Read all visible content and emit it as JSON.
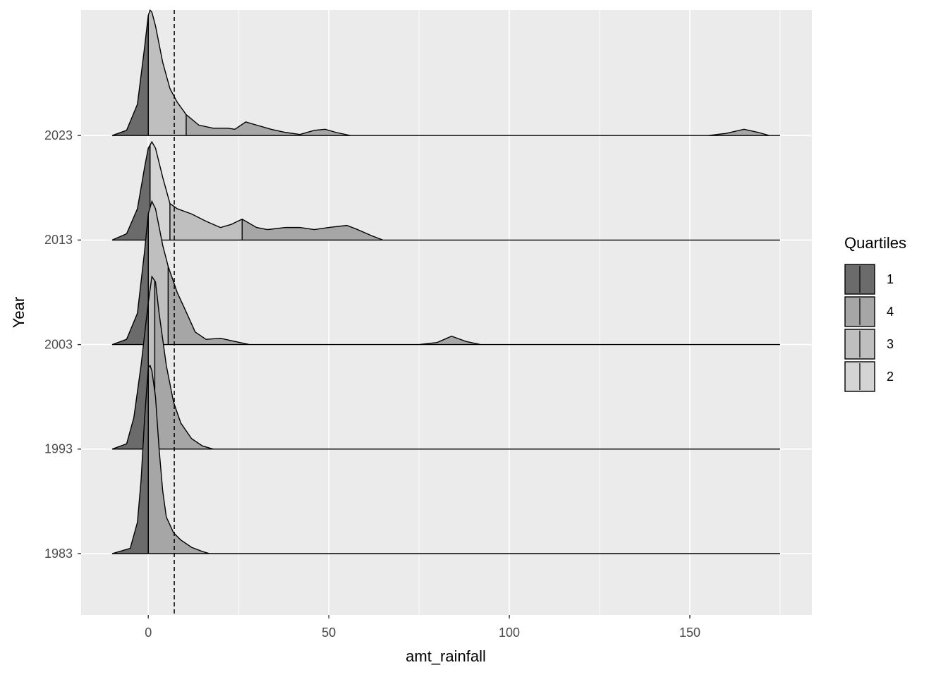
{
  "chart_data": {
    "type": "ridgeline",
    "xlabel": "amt_rainfall",
    "ylabel": "Year",
    "xlim": [
      -18.6,
      183.8
    ],
    "xticks": [
      0,
      50,
      100,
      150
    ],
    "xminor": [
      25,
      75,
      125,
      175
    ],
    "categories": [
      "1983",
      "1993",
      "2003",
      "2013",
      "2023"
    ],
    "vline": 7.2,
    "legend_title": "Quartiles",
    "legend": [
      {
        "label": "1",
        "color": "#6b6b6b"
      },
      {
        "label": "4",
        "color": "#a6a6a6"
      },
      {
        "label": "3",
        "color": "#bfbfbf"
      },
      {
        "label": "2",
        "color": "#d4d4d4"
      }
    ],
    "series": [
      {
        "x": [
          -10,
          -5,
          -3,
          -2,
          -1,
          0,
          0.5,
          1,
          2,
          3,
          4,
          5,
          7,
          9,
          12,
          15,
          17,
          175
        ],
        "values": [
          0,
          0.05,
          0.3,
          0.7,
          1.3,
          1.78,
          1.8,
          1.75,
          1.5,
          1.0,
          0.6,
          0.35,
          0.2,
          0.13,
          0.06,
          0.02,
          0,
          0
        ],
        "quartiles": [
          0,
          0,
          0
        ]
      },
      {
        "x": [
          -10,
          -6,
          -4,
          -2,
          0,
          1,
          2,
          3,
          5,
          7,
          9,
          12,
          15,
          18,
          175
        ],
        "values": [
          0,
          0.05,
          0.3,
          0.8,
          1.4,
          1.65,
          1.6,
          1.3,
          0.8,
          0.45,
          0.25,
          0.1,
          0.03,
          0,
          0
        ],
        "quartiles": [
          0,
          0,
          1.8
        ]
      },
      {
        "x": [
          -10,
          -6,
          -3,
          -1,
          0,
          1,
          2,
          4,
          5.5,
          8,
          10,
          13,
          16,
          20,
          24,
          28,
          75,
          80,
          84,
          88,
          92,
          175
        ],
        "values": [
          0,
          0.05,
          0.3,
          0.9,
          1.25,
          1.37,
          1.3,
          0.95,
          0.75,
          0.5,
          0.35,
          0.12,
          0.05,
          0.06,
          0.03,
          0,
          0,
          0.02,
          0.08,
          0.03,
          0,
          0
        ],
        "quartiles": [
          0,
          0,
          5.5
        ]
      },
      {
        "x": [
          -10,
          -6,
          -3,
          -1,
          0,
          1,
          2,
          4,
          6,
          8,
          12,
          16,
          20,
          23,
          26,
          30,
          33,
          38,
          42,
          46,
          50,
          55,
          58,
          62,
          65,
          175
        ],
        "values": [
          0,
          0.06,
          0.3,
          0.7,
          0.88,
          0.94,
          0.88,
          0.6,
          0.35,
          0.3,
          0.25,
          0.18,
          0.12,
          0.15,
          0.2,
          0.12,
          0.1,
          0.12,
          0.12,
          0.1,
          0.12,
          0.14,
          0.1,
          0.04,
          0,
          0
        ],
        "quartiles": [
          0.5,
          6,
          26
        ]
      },
      {
        "x": [
          -10,
          -6,
          -3,
          -1,
          0,
          0.5,
          1,
          2,
          4,
          6,
          8,
          10.5,
          14,
          18,
          22,
          24,
          27,
          30,
          34,
          38,
          42,
          46,
          49,
          52,
          56,
          155,
          160,
          165,
          169,
          172,
          175
        ],
        "values": [
          0,
          0.05,
          0.3,
          0.85,
          1.15,
          1.2,
          1.18,
          1.05,
          0.7,
          0.45,
          0.32,
          0.2,
          0.1,
          0.07,
          0.07,
          0.06,
          0.13,
          0.1,
          0.06,
          0.03,
          0.01,
          0.05,
          0.06,
          0.03,
          0,
          0,
          0.02,
          0.06,
          0.03,
          0,
          0
        ],
        "quartiles": [
          0,
          0,
          10.5
        ]
      }
    ]
  }
}
